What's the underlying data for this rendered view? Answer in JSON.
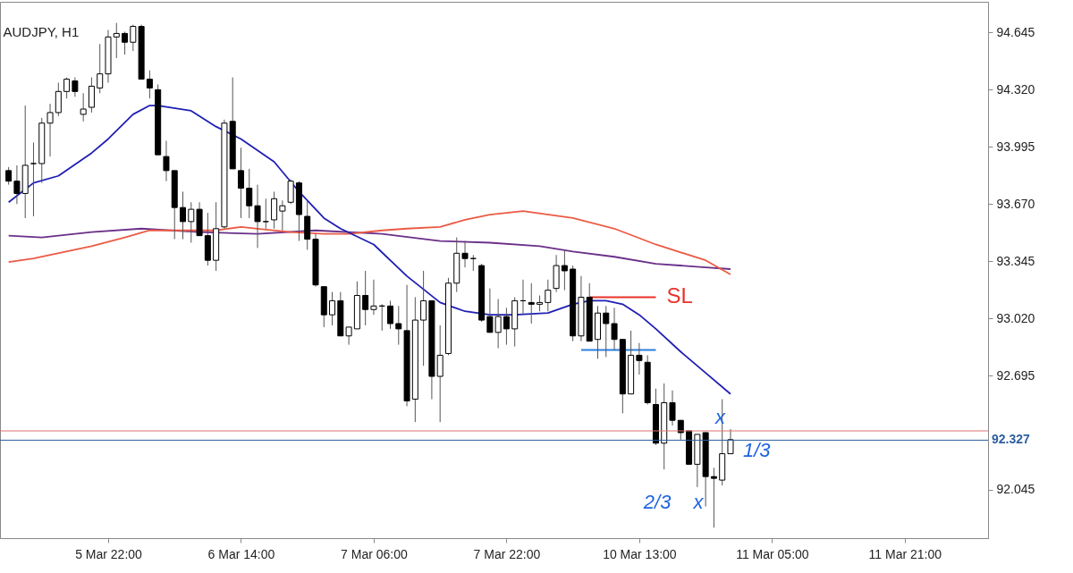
{
  "chart_data": {
    "type": "candlestick",
    "title": "AUDJPY, H1",
    "categories": [
      null,
      null,
      null,
      null,
      null,
      null,
      null,
      null,
      null,
      null,
      null,
      null,
      "5 Mar 22:00",
      null,
      null,
      null,
      null,
      null,
      null,
      null,
      null,
      null,
      null,
      null,
      null,
      null,
      null,
      null,
      "6 Mar 14:00",
      null,
      null,
      null,
      null,
      null,
      null,
      null,
      null,
      null,
      null,
      null,
      null,
      null,
      null,
      null,
      "7 Mar 06:00",
      null,
      null,
      null,
      null,
      null,
      null,
      null,
      null,
      null,
      null,
      null,
      null,
      null,
      null,
      null,
      "7 Mar 22:00",
      null,
      null,
      null,
      null,
      null,
      null,
      null,
      null,
      null,
      null,
      null,
      null,
      null,
      null,
      null,
      "10 Mar 13:00",
      null,
      null,
      null,
      null,
      null,
      null,
      null,
      null,
      null,
      null,
      null,
      null,
      null,
      null,
      null,
      "11 Mar 05:00",
      null,
      null,
      null,
      null,
      null,
      null,
      null,
      null,
      null,
      null,
      null,
      null,
      null,
      null,
      null,
      "11 Mar 21:00",
      null,
      null,
      null,
      null,
      null,
      null,
      null,
      null,
      null
    ],
    "ohlc": [
      [
        93.86,
        93.88,
        93.78,
        93.8
      ],
      [
        93.8,
        93.89,
        93.67,
        93.73
      ],
      [
        93.73,
        94.23,
        93.59,
        93.89
      ],
      [
        93.9,
        94.02,
        93.6,
        93.9
      ],
      [
        93.9,
        94.16,
        93.79,
        94.13
      ],
      [
        94.13,
        94.24,
        93.94,
        94.19
      ],
      [
        94.19,
        94.36,
        94.17,
        94.31
      ],
      [
        94.31,
        94.39,
        94.27,
        94.38
      ],
      [
        94.37,
        94.39,
        94.28,
        94.31
      ],
      [
        94.18,
        94.3,
        94.14,
        94.21
      ],
      [
        94.22,
        94.39,
        94.19,
        94.34
      ],
      [
        94.33,
        94.58,
        94.3,
        94.41
      ],
      [
        94.41,
        94.66,
        94.36,
        94.62
      ],
      [
        94.62,
        94.7,
        94.5,
        94.64
      ],
      [
        94.64,
        94.65,
        94.52,
        94.59
      ],
      [
        94.59,
        94.69,
        94.54,
        94.68
      ],
      [
        94.68,
        94.69,
        94.38,
        94.38
      ],
      [
        94.38,
        94.43,
        94.27,
        94.33
      ],
      [
        94.32,
        94.35,
        93.95,
        93.95
      ],
      [
        93.94,
        94.03,
        93.8,
        93.86
      ],
      [
        93.86,
        93.86,
        93.47,
        93.65
      ],
      [
        93.65,
        93.74,
        93.47,
        93.57
      ],
      [
        93.57,
        93.68,
        93.45,
        93.64
      ],
      [
        93.64,
        93.68,
        93.49,
        93.49
      ],
      [
        93.49,
        93.62,
        93.32,
        93.35
      ],
      [
        93.35,
        93.68,
        93.29,
        93.53
      ],
      [
        93.54,
        94.15,
        93.53,
        94.13
      ],
      [
        94.14,
        94.39,
        93.87,
        93.87
      ],
      [
        93.86,
        93.99,
        93.59,
        93.76
      ],
      [
        93.76,
        93.87,
        93.59,
        93.66
      ],
      [
        93.66,
        93.78,
        93.42,
        93.57
      ],
      [
        93.57,
        93.7,
        93.53,
        93.57
      ],
      [
        93.58,
        93.74,
        93.53,
        93.7
      ],
      [
        93.63,
        93.69,
        93.52,
        93.66
      ],
      [
        93.68,
        93.81,
        93.67,
        93.8
      ],
      [
        93.79,
        93.8,
        93.46,
        93.61
      ],
      [
        93.6,
        93.69,
        93.41,
        93.47
      ],
      [
        93.47,
        93.5,
        93.2,
        93.21
      ],
      [
        93.2,
        93.2,
        92.97,
        93.04
      ],
      [
        93.04,
        93.17,
        92.98,
        93.12
      ],
      [
        93.12,
        93.17,
        92.92,
        92.92
      ],
      [
        92.92,
        92.97,
        92.87,
        92.97
      ],
      [
        92.96,
        93.23,
        92.96,
        93.15
      ],
      [
        93.15,
        93.29,
        92.98,
        93.07
      ],
      [
        93.07,
        93.24,
        93.04,
        93.09
      ],
      [
        93.09,
        93.1,
        92.95,
        93.09
      ],
      [
        93.09,
        93.12,
        92.96,
        92.99
      ],
      [
        92.99,
        93.09,
        92.87,
        92.96
      ],
      [
        92.95,
        93.21,
        92.52,
        92.55
      ],
      [
        92.56,
        93.14,
        92.43,
        93.01
      ],
      [
        93.01,
        93.29,
        92.75,
        93.12
      ],
      [
        93.12,
        93.12,
        92.56,
        92.69
      ],
      [
        92.69,
        92.98,
        92.43,
        92.81
      ],
      [
        92.82,
        93.25,
        92.81,
        93.22
      ],
      [
        93.22,
        93.48,
        93.17,
        93.39
      ],
      [
        93.39,
        93.46,
        93.31,
        93.36
      ],
      [
        93.36,
        93.38,
        93.29,
        93.36
      ],
      [
        93.32,
        93.33,
        93.0,
        93.01
      ],
      [
        93.03,
        93.19,
        92.94,
        92.94
      ],
      [
        92.94,
        93.13,
        92.85,
        93.03
      ],
      [
        93.03,
        93.08,
        92.87,
        92.96
      ],
      [
        92.96,
        93.14,
        92.86,
        93.12
      ],
      [
        93.12,
        93.24,
        93.04,
        93.12
      ],
      [
        93.11,
        93.22,
        92.99,
        93.1
      ],
      [
        93.1,
        93.15,
        93.06,
        93.11
      ],
      [
        93.11,
        93.24,
        93.06,
        93.18
      ],
      [
        93.19,
        93.38,
        93.17,
        93.32
      ],
      [
        93.32,
        93.41,
        93.18,
        93.29
      ],
      [
        93.3,
        93.32,
        92.89,
        92.92
      ],
      [
        92.92,
        93.26,
        92.89,
        93.14
      ],
      [
        93.14,
        93.22,
        92.89,
        92.89
      ],
      [
        92.9,
        93.09,
        92.79,
        93.05
      ],
      [
        93.05,
        93.09,
        92.8,
        92.99
      ],
      [
        92.99,
        93.08,
        92.84,
        92.9
      ],
      [
        92.9,
        92.9,
        92.48,
        92.59
      ],
      [
        92.59,
        92.95,
        92.59,
        92.81
      ],
      [
        92.81,
        92.88,
        92.7,
        92.78
      ],
      [
        92.77,
        92.81,
        92.53,
        92.54
      ],
      [
        92.53,
        92.62,
        92.3,
        92.31
      ],
      [
        92.31,
        92.65,
        92.16,
        92.54
      ],
      [
        92.54,
        92.61,
        92.41,
        92.44
      ],
      [
        92.44,
        92.44,
        92.33,
        92.37
      ],
      [
        92.38,
        92.38,
        92.19,
        92.19
      ],
      [
        92.19,
        92.36,
        92.06,
        92.36
      ],
      [
        92.37,
        92.37,
        91.95,
        92.12
      ],
      [
        92.12,
        92.17,
        91.83,
        92.11
      ],
      [
        92.1,
        92.56,
        92.07,
        92.25
      ],
      [
        92.25,
        92.39,
        92.25,
        92.33
      ],
      null,
      null,
      null,
      null,
      null,
      null,
      null,
      null,
      null,
      null,
      null,
      null,
      null,
      null,
      null,
      null,
      null,
      null,
      null,
      null,
      null,
      null,
      null,
      null,
      null,
      null,
      null,
      null,
      null,
      null
    ],
    "series": [
      {
        "type": "line",
        "color": "#6a2f8a",
        "values": [
          93.49,
          null,
          null,
          null,
          93.48,
          null,
          null,
          null,
          null,
          null,
          93.51,
          null,
          null,
          null,
          null,
          null,
          93.53,
          null,
          null,
          null,
          null,
          null,
          null,
          93.51,
          null,
          null,
          null,
          null,
          null,
          null,
          93.5,
          null,
          null,
          null,
          null,
          null,
          null,
          93.52,
          null,
          null,
          null,
          null,
          null,
          null,
          null,
          93.5,
          null,
          null,
          null,
          null,
          null,
          null,
          93.46,
          null,
          null,
          null,
          null,
          null,
          93.45,
          null,
          null,
          null,
          null,
          null,
          93.43,
          null,
          null,
          null,
          93.4,
          null,
          null,
          null,
          null,
          93.37,
          null,
          null,
          null,
          null,
          93.33,
          null,
          null,
          null,
          null,
          null,
          93.31,
          null,
          null,
          93.3,
          null,
          null,
          null,
          null,
          null,
          null,
          null,
          null,
          null,
          null,
          null,
          null,
          null,
          null,
          null,
          null,
          null,
          null,
          null,
          null,
          null,
          null,
          null,
          null,
          null,
          null,
          null,
          null,
          null,
          null
        ]
      },
      {
        "type": "line",
        "color": "#ec5a44",
        "values": [
          93.34,
          null,
          null,
          93.36,
          null,
          null,
          null,
          null,
          null,
          null,
          93.43,
          null,
          null,
          null,
          93.48,
          null,
          null,
          93.52,
          null,
          null,
          null,
          93.52,
          null,
          null,
          null,
          93.52,
          null,
          null,
          93.54,
          null,
          93.53,
          null,
          null,
          null,
          93.51,
          null,
          null,
          null,
          93.5,
          null,
          null,
          93.5,
          null,
          null,
          null,
          93.52,
          null,
          null,
          93.53,
          null,
          null,
          null,
          93.54,
          null,
          null,
          93.58,
          null,
          null,
          93.61,
          null,
          null,
          null,
          93.63,
          null,
          null,
          null,
          null,
          null,
          93.59,
          null,
          null,
          null,
          null,
          93.53,
          null,
          null,
          null,
          null,
          93.44,
          null,
          null,
          null,
          null,
          null,
          93.35,
          null,
          null,
          93.27,
          null,
          null,
          null,
          null,
          null,
          null,
          null,
          null,
          null,
          null,
          null,
          null,
          null,
          null,
          null,
          null,
          null,
          null,
          null,
          null,
          null,
          null,
          null,
          null,
          null,
          null,
          null,
          null,
          null,
          null
        ]
      },
      {
        "type": "line",
        "color": "#1f1fb4",
        "values": [
          93.68,
          null,
          null,
          93.79,
          null,
          null,
          93.83,
          null,
          null,
          null,
          93.96,
          null,
          94.04,
          null,
          null,
          94.18,
          null,
          94.23,
          94.23,
          null,
          null,
          null,
          94.2,
          null,
          null,
          94.11,
          null,
          null,
          94.04,
          null,
          null,
          null,
          93.91,
          null,
          null,
          93.74,
          null,
          null,
          93.59,
          null,
          93.53,
          null,
          null,
          null,
          93.44,
          null,
          null,
          null,
          93.26,
          null,
          null,
          null,
          93.11,
          null,
          null,
          93.06,
          null,
          null,
          93.04,
          null,
          null,
          93.04,
          null,
          null,
          null,
          93.05,
          null,
          null,
          93.1,
          null,
          93.12,
          null,
          93.12,
          null,
          93.1,
          null,
          93.04,
          null,
          92.96,
          null,
          null,
          92.83,
          null,
          null,
          92.71,
          null,
          null,
          92.59,
          null,
          null,
          null,
          null,
          null,
          null,
          null,
          null,
          null,
          null,
          null,
          null,
          null,
          null,
          null,
          null,
          null,
          null,
          null,
          null,
          null,
          null,
          null,
          null,
          null,
          null,
          null,
          null,
          null,
          null
        ]
      },
      {
        "type": "line",
        "name": "SL",
        "color": "#e8332a",
        "values": [
          null,
          null,
          null,
          null,
          null,
          null,
          null,
          null,
          null,
          null,
          null,
          null,
          null,
          null,
          null,
          null,
          null,
          null,
          null,
          null,
          null,
          null,
          null,
          null,
          null,
          null,
          null,
          null,
          null,
          null,
          null,
          null,
          null,
          null,
          null,
          null,
          null,
          null,
          null,
          null,
          null,
          null,
          null,
          null,
          null,
          null,
          null,
          null,
          null,
          null,
          null,
          null,
          null,
          null,
          null,
          null,
          null,
          null,
          null,
          null,
          null,
          null,
          null,
          null,
          null,
          null,
          null,
          null,
          null,
          null,
          93.14,
          93.14,
          93.14,
          93.14,
          93.14,
          93.14,
          93.14,
          93.14,
          93.14,
          null,
          null,
          null,
          null,
          null,
          null,
          null,
          null,
          null,
          null,
          null,
          null,
          null,
          null,
          null,
          null,
          null,
          null,
          null,
          null,
          null,
          null,
          null,
          null,
          null,
          null,
          null,
          null,
          null,
          null,
          null,
          null,
          null,
          null,
          null,
          null,
          null,
          null,
          null
        ]
      },
      {
        "type": "line",
        "color": "#2a7fe0",
        "values": [
          null,
          null,
          null,
          null,
          null,
          null,
          null,
          null,
          null,
          null,
          null,
          null,
          null,
          null,
          null,
          null,
          null,
          null,
          null,
          null,
          null,
          null,
          null,
          null,
          null,
          null,
          null,
          null,
          null,
          null,
          null,
          null,
          null,
          null,
          null,
          null,
          null,
          null,
          null,
          null,
          null,
          null,
          null,
          null,
          null,
          null,
          null,
          null,
          null,
          null,
          null,
          null,
          null,
          null,
          null,
          null,
          null,
          null,
          null,
          null,
          null,
          null,
          null,
          null,
          null,
          null,
          null,
          null,
          null,
          92.84,
          92.84,
          92.84,
          92.84,
          92.84,
          92.84,
          92.84,
          92.84,
          92.84,
          92.84,
          null,
          null,
          null,
          null,
          null,
          null,
          null,
          null,
          null,
          null,
          null,
          null,
          null,
          null,
          null,
          null,
          null,
          null,
          null,
          null,
          null,
          null,
          null,
          null,
          null,
          null,
          null,
          null,
          null,
          null,
          null,
          null,
          null,
          null,
          null,
          null,
          null,
          null,
          null
        ]
      }
    ],
    "ref_lines": [
      {
        "axis": "y",
        "value": 92.38,
        "color": "#e07070"
      },
      {
        "axis": "y",
        "value": 92.327,
        "label": "92.327",
        "color": "#2d5f9e"
      }
    ],
    "annotations": [
      {
        "text": "1/3",
        "y": 92.327
      },
      "2/3",
      {
        "text": "x",
        "y": 92.38
      },
      "x"
    ],
    "ylim": [
      91.77,
      94.82
    ],
    "yticks": [
      {
        "value": 94.645,
        "label": "94.645"
      },
      {
        "value": 94.32,
        "label": "94.320"
      },
      {
        "value": 93.995,
        "label": "93.995"
      },
      {
        "value": 93.67,
        "label": "93.670"
      },
      {
        "value": 93.345,
        "label": "93.345"
      },
      {
        "value": 93.02,
        "label": "93.020"
      },
      {
        "value": 92.695,
        "label": "92.695"
      },
      {
        "value": 92.045,
        "label": "92.045"
      }
    ]
  }
}
